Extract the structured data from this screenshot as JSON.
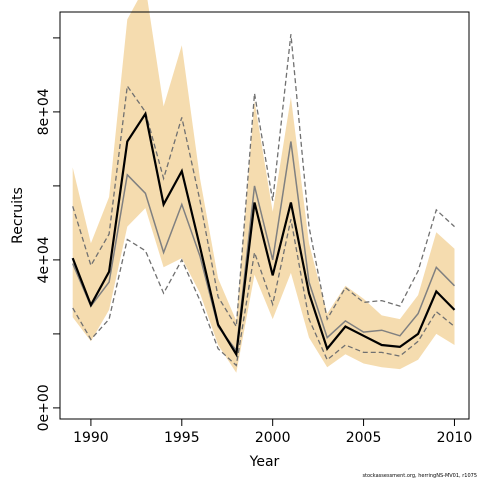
{
  "chart_data": {
    "type": "line",
    "xlabel": "Year",
    "ylabel": "Recruits",
    "x": [
      1989,
      1990,
      1991,
      1992,
      1993,
      1994,
      1995,
      1996,
      1997,
      1998,
      1999,
      2000,
      2001,
      2002,
      2003,
      2004,
      2005,
      2006,
      2007,
      2008,
      2009,
      2010
    ],
    "xlim": [
      1988.3,
      2010.8
    ],
    "ylim": [
      -3000,
      107000
    ],
    "xticks": [
      1990,
      1995,
      2000,
      2005,
      2010
    ],
    "xtick_labels": [
      "1990",
      "1995",
      "2000",
      "2005",
      "2010"
    ],
    "yticks": [
      0,
      40000,
      80000
    ],
    "ytick_labels": [
      "0e+00",
      "4e+04",
      "8e+04"
    ],
    "y_minor_ticks": [
      20000,
      60000,
      100000
    ],
    "band": {
      "lower": [
        24500,
        18000,
        26500,
        49000,
        54000,
        38000,
        40500,
        31000,
        17000,
        9500,
        36000,
        24000,
        36500,
        19000,
        11000,
        14500,
        12000,
        11000,
        10500,
        13000,
        20000,
        17000
      ],
      "upper": [
        65000,
        44500,
        57000,
        105000,
        114000,
        81500,
        98000,
        62000,
        35000,
        23500,
        83000,
        53000,
        84000,
        44500,
        25500,
        33000,
        29500,
        25000,
        24000,
        30500,
        47500,
        43000
      ]
    },
    "series": [
      {
        "values": [
          40500,
          27800,
          36800,
          72000,
          79500,
          55000,
          64000,
          43500,
          22500,
          14500,
          55500,
          35800,
          55500,
          31000,
          16000,
          22000,
          19500,
          17000,
          16500,
          20000,
          31500,
          26500
        ]
      },
      {
        "values": [
          39000,
          27500,
          34000,
          63000,
          58000,
          42000,
          55000,
          41000,
          22000,
          15500,
          60000,
          40000,
          72000,
          34000,
          19000,
          23500,
          20500,
          21000,
          19500,
          25500,
          38000,
          33000
        ]
      },
      {
        "values": [
          54500,
          38500,
          47000,
          87000,
          80000,
          62000,
          78500,
          56000,
          30000,
          22000,
          85000,
          56000,
          101000,
          49000,
          24000,
          32500,
          28500,
          29000,
          27500,
          37000,
          53500,
          49000
        ]
      },
      {
        "values": [
          27000,
          18500,
          24000,
          45500,
          42500,
          31000,
          40000,
          29000,
          16000,
          11500,
          42000,
          28000,
          51000,
          24000,
          13000,
          17000,
          15000,
          15000,
          14000,
          18000,
          26000,
          22000
        ]
      }
    ],
    "colors": {
      "band": "#f5dcaf",
      "point_estimate": "#000000",
      "median": "#808080",
      "bounds": "#707070",
      "frame": "#000000"
    },
    "footnote": "stockassessment.org, herringNS-MV01, r1075"
  }
}
